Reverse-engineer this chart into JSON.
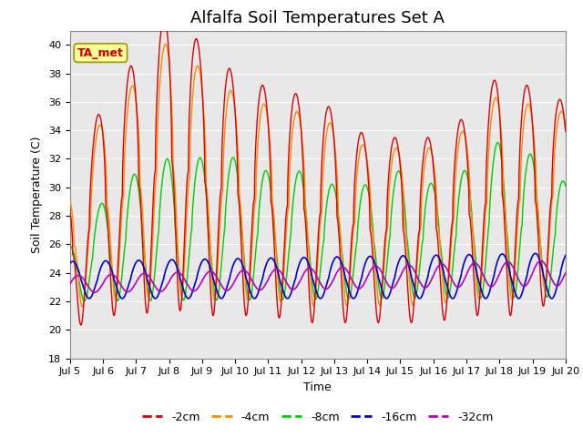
{
  "title": "Alfalfa Soil Temperatures Set A",
  "xlabel": "Time",
  "ylabel": "Soil Temperature (C)",
  "ylim": [
    18,
    41
  ],
  "yticks": [
    18,
    20,
    22,
    24,
    26,
    28,
    30,
    32,
    34,
    36,
    38,
    40
  ],
  "xtick_labels": [
    "Jul 5",
    "Jul 6",
    "Jul 7",
    "Jul 8",
    "Jul 9",
    "Jul 10",
    "Jul 11",
    "Jul 12",
    "Jul 13",
    "Jul 14",
    "Jul 15",
    "Jul 16",
    "Jul 17",
    "Jul 18",
    "Jul 19",
    "Jul 20"
  ],
  "line_colors": {
    "-2cm": "#dd0000",
    "-4cm": "#ff8800",
    "-8cm": "#00cc00",
    "-16cm": "#0000cc",
    "-32cm": "#bb00bb"
  },
  "annotation_text": "TA_met",
  "annotation_color": "#cc0000",
  "annotation_bg": "#ffff99",
  "plot_bg": "#e8e8e8",
  "grid_color": "#ffffff",
  "title_fontsize": 13,
  "axis_fontsize": 9,
  "tick_fontsize": 8
}
